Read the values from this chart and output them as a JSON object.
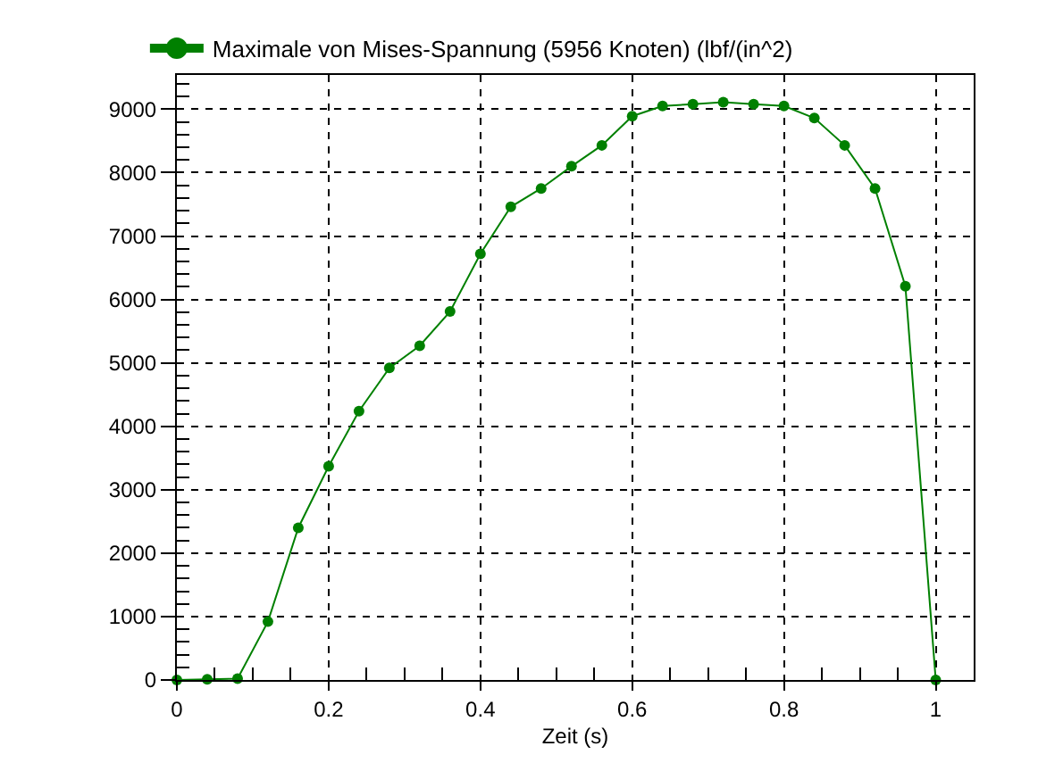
{
  "chart_data": {
    "type": "line",
    "xlabel": "Zeit (s)",
    "x": [
      0,
      0.04,
      0.08,
      0.12,
      0.16,
      0.2,
      0.24,
      0.28,
      0.32,
      0.36,
      0.4,
      0.44,
      0.48,
      0.52,
      0.56,
      0.6,
      0.64,
      0.68,
      0.72,
      0.76,
      0.8,
      0.84,
      0.88,
      0.92,
      0.96,
      1
    ],
    "series": [
      {
        "name": "Maximale von Mises-Spannung (5956 Knoten) (lbf/(in^2)",
        "color": "#008000",
        "values": [
          0,
          10,
          20,
          920,
          2400,
          3370,
          4240,
          4920,
          5270,
          5810,
          6720,
          7460,
          7750,
          8100,
          8430,
          8890,
          9050,
          9080,
          9110,
          9080,
          9050,
          8860,
          8430,
          7750,
          6210,
          0
        ]
      }
    ],
    "xlim": [
      0,
      1.05
    ],
    "xticks": [
      0,
      {
        "value": 0.05,
        "label": null
      },
      {
        "value": 0.1,
        "label": null
      },
      {
        "value": 0.15,
        "label": null
      },
      0.2,
      {
        "value": 0.25,
        "label": null
      },
      {
        "value": 0.3,
        "label": null
      },
      {
        "value": 0.35,
        "label": null
      },
      0.4,
      {
        "value": 0.45,
        "label": null
      },
      {
        "value": 0.5,
        "label": null
      },
      {
        "value": 0.55,
        "label": null
      },
      0.6,
      {
        "value": 0.65,
        "label": null
      },
      {
        "value": 0.7,
        "label": null
      },
      {
        "value": 0.75,
        "label": null
      },
      0.8,
      {
        "value": 0.85,
        "label": null
      },
      {
        "value": 0.9,
        "label": null
      },
      {
        "value": 0.95,
        "label": null
      },
      1
    ],
    "ylim": [
      0,
      9540
    ],
    "yticks": [
      0,
      {
        "value": 200,
        "label": null
      },
      {
        "value": 400,
        "label": null
      },
      {
        "value": 600,
        "label": null
      },
      {
        "value": 800,
        "label": null
      },
      1000,
      {
        "value": 1200,
        "label": null
      },
      {
        "value": 1400,
        "label": null
      },
      {
        "value": 1600,
        "label": null
      },
      {
        "value": 1800,
        "label": null
      },
      2000,
      {
        "value": 2200,
        "label": null
      },
      {
        "value": 2400,
        "label": null
      },
      {
        "value": 2600,
        "label": null
      },
      {
        "value": 2800,
        "label": null
      },
      3000,
      {
        "value": 3200,
        "label": null
      },
      {
        "value": 3400,
        "label": null
      },
      {
        "value": 3600,
        "label": null
      },
      {
        "value": 3800,
        "label": null
      },
      4000,
      {
        "value": 4200,
        "label": null
      },
      {
        "value": 4400,
        "label": null
      },
      {
        "value": 4600,
        "label": null
      },
      {
        "value": 4800,
        "label": null
      },
      5000,
      {
        "value": 5200,
        "label": null
      },
      {
        "value": 5400,
        "label": null
      },
      {
        "value": 5600,
        "label": null
      },
      {
        "value": 5800,
        "label": null
      },
      6000,
      {
        "value": 6200,
        "label": null
      },
      {
        "value": 6400,
        "label": null
      },
      {
        "value": 6600,
        "label": null
      },
      {
        "value": 6800,
        "label": null
      },
      7000,
      {
        "value": 7200,
        "label": null
      },
      {
        "value": 7400,
        "label": null
      },
      {
        "value": 7600,
        "label": null
      },
      {
        "value": 7800,
        "label": null
      },
      8000,
      {
        "value": 8200,
        "label": null
      },
      {
        "value": 8400,
        "label": null
      },
      {
        "value": 8600,
        "label": null
      },
      {
        "value": 8800,
        "label": null
      },
      9000,
      {
        "value": 9200,
        "label": null
      },
      {
        "value": 9400,
        "label": null
      }
    ],
    "grid": true,
    "legend": "top left",
    "marker": "circle",
    "line_style": "solid"
  }
}
